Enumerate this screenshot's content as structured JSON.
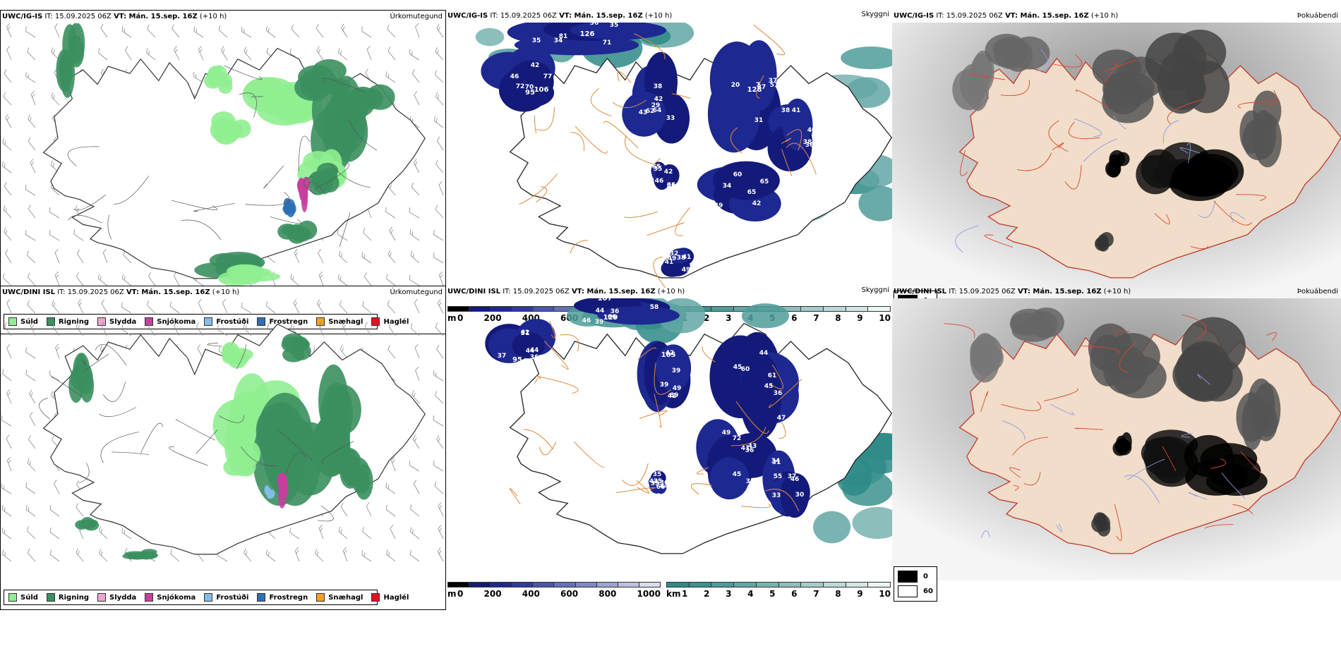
{
  "colors": {
    "precip": [
      "#90ee90",
      "#3b8f5f",
      "#eea5d3",
      "#c53f9f",
      "#86bce8",
      "#2d6fb5",
      "#f5a01e",
      "#e0141e"
    ],
    "cloud_base": [
      "#000000",
      "#141a7a",
      "#1e2891",
      "#2f3a9f",
      "#4a56ab",
      "#6670b7",
      "#8187c4",
      "#9ea3d1",
      "#bcc0e1",
      "#dadbed"
    ],
    "visibility": [
      "#2d8a86",
      "#3c928f",
      "#4f9c99",
      "#63a7a4",
      "#78b3b0",
      "#8ebfbd",
      "#a5ccca",
      "#bcd9d7",
      "#d4e6e5",
      "#edf4f4"
    ]
  },
  "rows": [
    {
      "precip_panel": {
        "model": "UWC/IG-IS",
        "it": "IT: 15.09.2025 06Z",
        "vt": "VT: Mán. 15.sep. 16Z",
        "lead": "(+10 h)",
        "product": "Úrkomutegund"
      },
      "cloud_panel": {
        "model": "UWC/IG-IS",
        "it": "IT: 15.09.2025 06Z",
        "vt": "VT: Mán. 15.sep. 16Z",
        "lead": "(+10 h)",
        "product": "Skyggni",
        "labels": [
          "106",
          "126",
          "64",
          "128",
          "38",
          "49",
          "35",
          "41",
          "70",
          "35",
          "43",
          "51",
          "36",
          "65",
          "42",
          "38",
          "42",
          "35",
          "38",
          "31",
          "41",
          "42",
          "46",
          "41",
          "77",
          "36",
          "29",
          "20",
          "38",
          "65",
          "36",
          "32",
          "72",
          "81",
          "62",
          "37",
          "40",
          "60",
          "65",
          "49",
          "46",
          "71",
          "42",
          "37",
          "35",
          "34",
          "61",
          "49",
          "95",
          "34",
          "33",
          "7"
        ]
      },
      "fog_panel": {
        "model": "UWC/IG-IS",
        "it": "IT: 15.09.2025 06Z",
        "vt": "VT: Mán. 15.sep. 16Z",
        "lead": "(+10 h)",
        "product": "Þokuábendi"
      }
    },
    {
      "precip_panel": {
        "model": "UWC/DINI ISL",
        "it": "IT: 15.09.2025 06Z",
        "vt": "VT: Mán. 15.sep. 16Z",
        "lead": "(+10 h)",
        "product": "Úrkomutegund"
      },
      "cloud_panel": {
        "model": "UWC/DINI ISL",
        "it": "IT: 15.09.2025 06Z",
        "vt": "VT: Mán. 15.sep. 16Z",
        "lead": "(+10 h)",
        "product": "Skyggni",
        "labels": [
          "95",
          "129",
          "105",
          "44",
          "41",
          "30",
          "42",
          "36",
          "39",
          "39",
          "36",
          "35",
          "37",
          "35",
          "42",
          "44",
          "49",
          "61",
          "72",
          "55",
          "36",
          "44",
          "46",
          "42",
          "60",
          "36",
          "33",
          "35",
          "31",
          "58",
          "42",
          "45",
          "49",
          "34",
          "66",
          "62",
          "107",
          "69",
          "47",
          "45",
          "31",
          "44",
          "37",
          "36",
          "39",
          "45",
          "43",
          "46",
          "39",
          "44",
          "66"
        ]
      },
      "fog_panel": {
        "model": "UWC/DINI ISL",
        "it": "IT: 15.09.2025 06Z",
        "vt": "VT: Mán. 15.sep. 16Z",
        "lead": "(+10 h)",
        "product": "Þokuábendi"
      }
    }
  ],
  "precip_legend": [
    "Súld",
    "Rigning",
    "Slydda",
    "Snjókoma",
    "Frostúði",
    "Frostregn",
    "Snæhagl",
    "Haglél"
  ],
  "cloud_colorbar": {
    "unit": "m",
    "ticks": [
      "0",
      "200",
      "400",
      "600",
      "800",
      "1000"
    ]
  },
  "vis_colorbar": {
    "unit": "km",
    "ticks": [
      "1",
      "2",
      "3",
      "4",
      "5",
      "6",
      "7",
      "8",
      "9",
      "10"
    ]
  },
  "fog_legend": {
    "min": "0",
    "max": "60"
  }
}
